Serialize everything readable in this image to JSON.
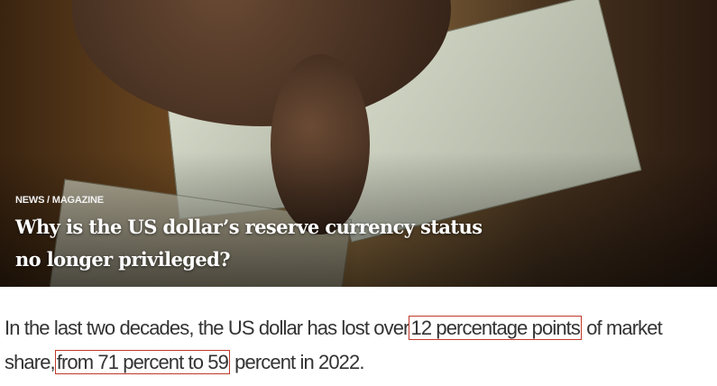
{
  "hero": {
    "image": "hand-holding-us-100-dollar-bills",
    "kicker": "NEWS / MAGAZINE",
    "title": "Why is the US dollar’s reserve currency status no longer privileged?"
  },
  "article": {
    "text_1": "In the last two decades, the US dollar has lost over",
    "highlight_1": "12 percentage points",
    "text_2": " of market share,",
    "highlight_2": "from 71 percent to 59",
    "text_3": " percent in 2022."
  },
  "colors": {
    "highlight_border": "#c0392b",
    "text": "#333333"
  }
}
